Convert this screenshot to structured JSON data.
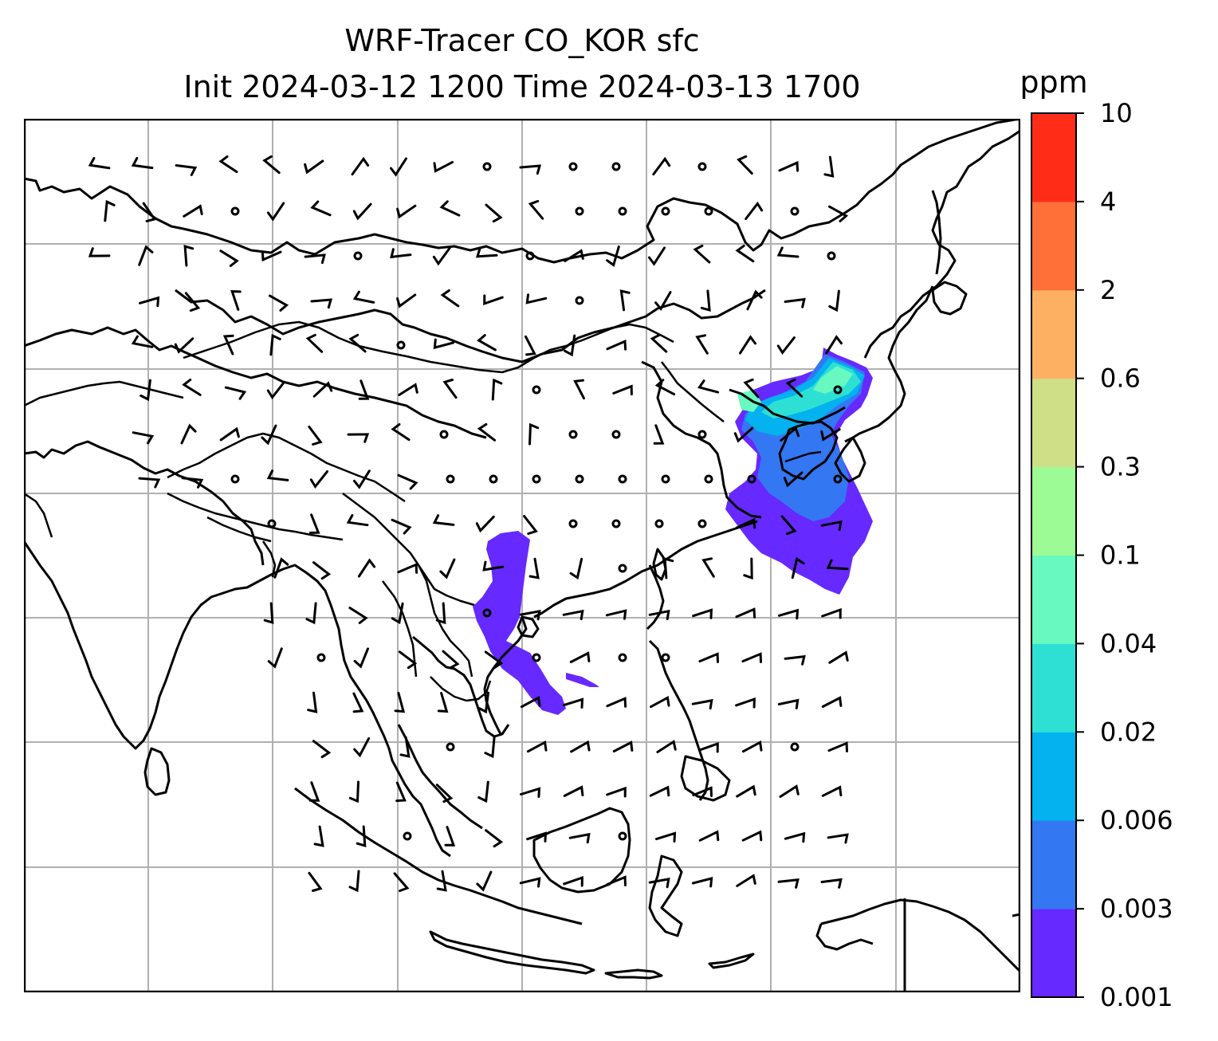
{
  "title": {
    "line1": "WRF-Tracer CO_KOR sfc",
    "line2": "Init 2024-03-12 1200 Time 2024-03-13 1700"
  },
  "colorbar": {
    "unit": "ppm",
    "levels": [
      "0.001",
      "0.003",
      "0.006",
      "0.02",
      "0.04",
      "0.1",
      "0.3",
      "0.6",
      "2",
      "4",
      "10"
    ],
    "colors": [
      "#6629ff",
      "#3477f3",
      "#03b2ee",
      "#2ee0d4",
      "#67f9c0",
      "#9cfb94",
      "#cedf87",
      "#fdb062",
      "#fe7038",
      "#ff2d17"
    ]
  },
  "map": {
    "background": "#ffffff",
    "gridline_color": "#b0b0b0",
    "coastline_color": "#000000",
    "gridlines": true,
    "overlay": "wind barbs",
    "plumes": [
      {
        "region": "Korea / Yellow Sea / NE China",
        "max_level": "0.1"
      },
      {
        "region": "Indochina",
        "max_level": "0.003"
      }
    ]
  }
}
